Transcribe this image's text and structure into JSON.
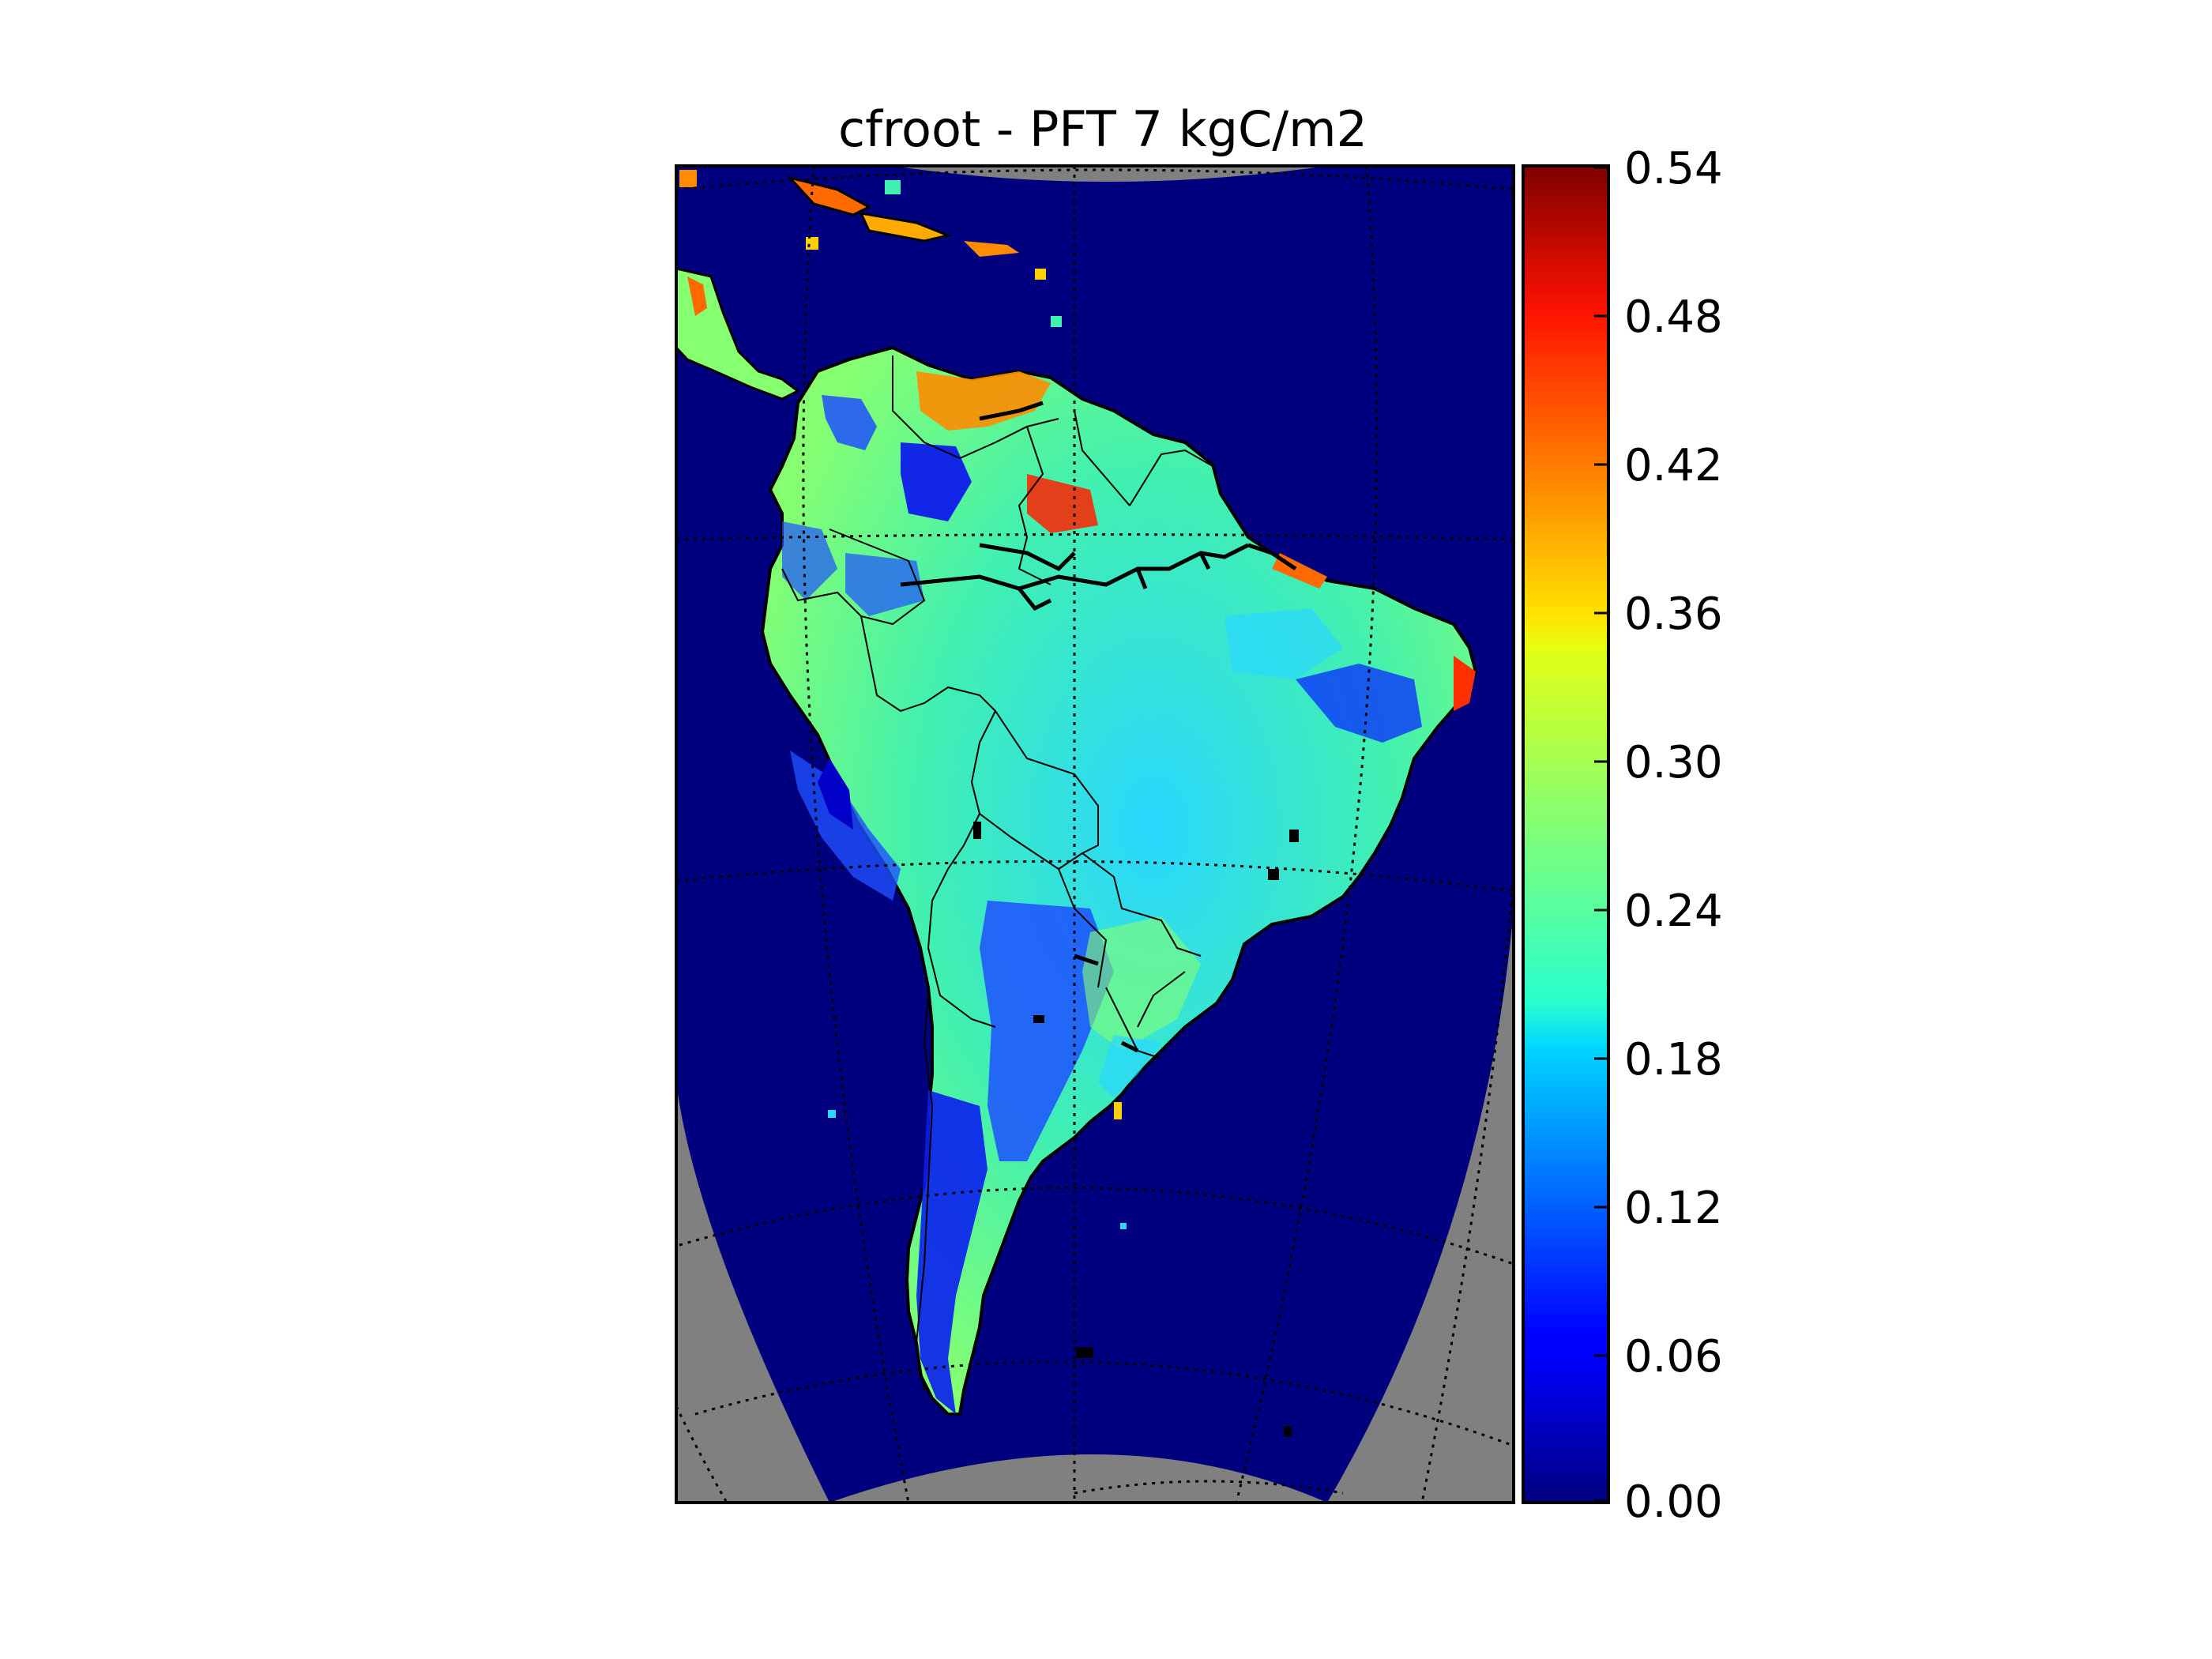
{
  "title": "cfroot - PFT 7  kgC/m2",
  "colorbar": {
    "min": 0.0,
    "max": 0.54,
    "colormap": "jet",
    "ticks": [
      "0.54",
      "0.48",
      "0.42",
      "0.36",
      "0.30",
      "0.24",
      "0.18",
      "0.12",
      "0.06",
      "0.00"
    ]
  },
  "colors": {
    "ocean": "#00007f",
    "offmap": "#808080",
    "coast": "#000000"
  }
}
